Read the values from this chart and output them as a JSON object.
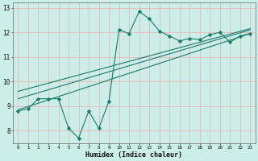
{
  "xlabel": "Humidex (Indice chaleur)",
  "bg_color": "#cceee8",
  "grid_color": "#e8b8b8",
  "line_color": "#1a7a6a",
  "xlim": [
    -0.5,
    23.5
  ],
  "ylim": [
    7.5,
    13.2
  ],
  "xticks": [
    0,
    1,
    2,
    3,
    4,
    5,
    6,
    7,
    8,
    9,
    10,
    11,
    12,
    13,
    14,
    15,
    16,
    17,
    18,
    19,
    20,
    21,
    22,
    23
  ],
  "yticks": [
    8,
    9,
    10,
    11,
    12,
    13
  ],
  "data_x": [
    0,
    1,
    2,
    3,
    4,
    5,
    6,
    7,
    8,
    9,
    10,
    11,
    12,
    13,
    14,
    15,
    16,
    17,
    18,
    19,
    20,
    21,
    22,
    23
  ],
  "data_y": [
    8.8,
    8.9,
    9.3,
    9.3,
    9.3,
    8.1,
    7.7,
    8.8,
    8.1,
    9.2,
    12.1,
    11.95,
    12.85,
    12.55,
    12.05,
    11.85,
    11.65,
    11.75,
    11.7,
    11.9,
    12.0,
    11.6,
    11.85,
    11.95
  ],
  "trend_lines": [
    {
      "x0": 0,
      "y0": 8.85,
      "x1": 23,
      "y1": 11.95
    },
    {
      "x0": 0,
      "y0": 9.3,
      "x1": 23,
      "y1": 12.1
    },
    {
      "x0": 0,
      "y0": 9.6,
      "x1": 23,
      "y1": 12.15
    }
  ]
}
